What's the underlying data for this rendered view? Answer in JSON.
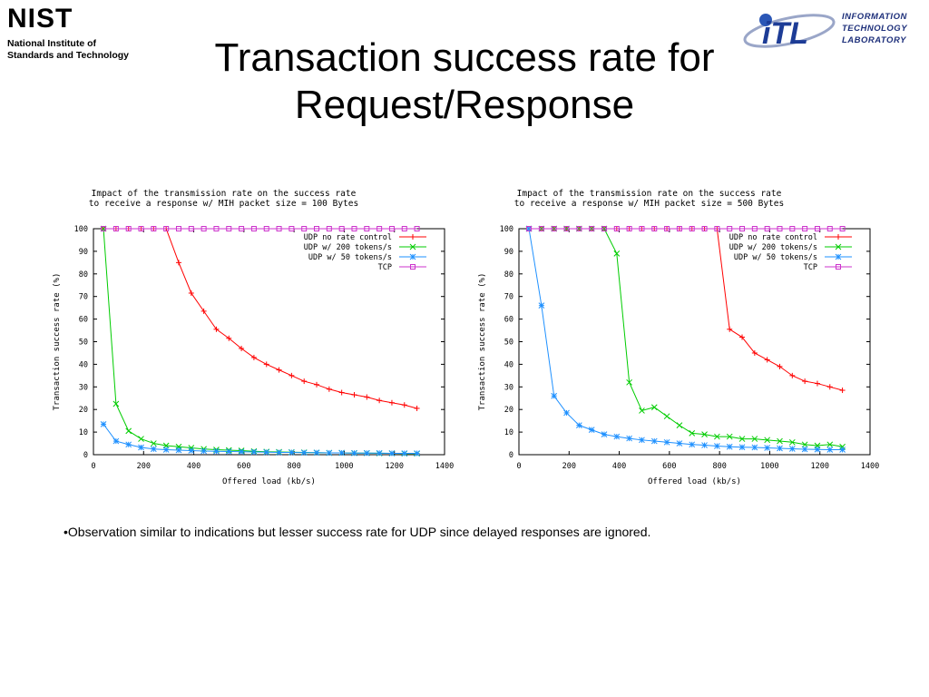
{
  "header": {
    "nist_logo": {
      "word": "NIST",
      "line1": "National Institute of",
      "line2": "Standards and Technology"
    },
    "itl_logo": {
      "mark": "iTL",
      "lines": [
        "INFORMATION",
        "TECHNOLOGY",
        "LABORATORY"
      ]
    },
    "title_line1": "Transaction success rate for",
    "title_line2": "Request/Response"
  },
  "bullet_text": "•Observation similar to indications but lesser success rate for UDP since delayed responses are ignored.",
  "chart_data": [
    {
      "type": "line",
      "title": "Impact of the transmission rate on the success rate",
      "subtitle": "to receive a response w/ MIH packet size = 100 Bytes",
      "xlabel": "Offered load (kb/s)",
      "ylabel": "Transaction success rate (%)",
      "xlim": [
        0,
        1400
      ],
      "ylim": [
        0,
        100
      ],
      "xticks": [
        0,
        200,
        400,
        600,
        800,
        1000,
        1200,
        1400
      ],
      "yticks": [
        0,
        10,
        20,
        30,
        40,
        50,
        60,
        70,
        80,
        90,
        100
      ],
      "grid": false,
      "legend_position": "top-right",
      "series": [
        {
          "name": "UDP no rate control",
          "color": "#ff0000",
          "marker": "plus",
          "x": [
            40,
            90,
            140,
            190,
            240,
            290,
            340,
            390,
            440,
            490,
            540,
            590,
            640,
            690,
            740,
            790,
            840,
            890,
            940,
            990,
            1040,
            1090,
            1140,
            1190,
            1240,
            1290
          ],
          "y": [
            100,
            100,
            100,
            100,
            100,
            100,
            85,
            71.5,
            63.5,
            55.5,
            51.5,
            47,
            43,
            40,
            37.5,
            35,
            32.5,
            31,
            29,
            27.5,
            26.5,
            25.5,
            24,
            23,
            22,
            20.5
          ]
        },
        {
          "name": "UDP w/ 200 tokens/s",
          "color": "#00cc00",
          "marker": "x",
          "x": [
            40,
            90,
            140,
            190,
            240,
            290,
            340,
            390,
            440,
            490,
            540,
            590,
            640,
            690,
            740,
            790,
            840,
            890,
            940,
            990,
            1040,
            1090,
            1140,
            1190,
            1240,
            1290
          ],
          "y": [
            100,
            22.5,
            10.5,
            7,
            5,
            4,
            3.5,
            3,
            2.5,
            2.2,
            2,
            1.8,
            1.5,
            1.3,
            1.2,
            1.1,
            1,
            0.9,
            0.8,
            0.8,
            0.7,
            0.7,
            0.6,
            0.6,
            0.5,
            0.5
          ]
        },
        {
          "name": "UDP w/ 50 tokens/s",
          "color": "#1e90ff",
          "marker": "star",
          "x": [
            40,
            90,
            140,
            190,
            240,
            290,
            340,
            390,
            440,
            490,
            540,
            590,
            640,
            690,
            740,
            790,
            840,
            890,
            940,
            990,
            1040,
            1090,
            1140,
            1190,
            1240,
            1290
          ],
          "y": [
            13.5,
            6,
            4.5,
            3.2,
            2.5,
            2.2,
            2,
            1.8,
            1.6,
            1.5,
            1.4,
            1.3,
            1.2,
            1.1,
            1,
            1,
            0.9,
            0.9,
            0.8,
            0.8,
            0.7,
            0.7,
            0.7,
            0.6,
            0.6,
            0.6
          ]
        },
        {
          "name": "TCP",
          "color": "#cc33cc",
          "marker": "square",
          "x": [
            40,
            90,
            140,
            190,
            240,
            290,
            340,
            390,
            440,
            490,
            540,
            590,
            640,
            690,
            740,
            790,
            840,
            890,
            940,
            990,
            1040,
            1090,
            1140,
            1190,
            1240,
            1290
          ],
          "y": [
            100,
            100,
            100,
            100,
            100,
            100,
            100,
            100,
            100,
            100,
            100,
            100,
            100,
            100,
            100,
            100,
            100,
            100,
            100,
            100,
            100,
            100,
            100,
            100,
            100,
            100
          ]
        }
      ]
    },
    {
      "type": "line",
      "title": "Impact of the transmission rate on the success rate",
      "subtitle": "to receive a response w/ MIH packet size = 500 Bytes",
      "xlabel": "Offered load (kb/s)",
      "ylabel": "Transaction success rate (%)",
      "xlim": [
        0,
        1400
      ],
      "ylim": [
        0,
        100
      ],
      "xticks": [
        0,
        200,
        400,
        600,
        800,
        1000,
        1200,
        1400
      ],
      "yticks": [
        0,
        10,
        20,
        30,
        40,
        50,
        60,
        70,
        80,
        90,
        100
      ],
      "grid": false,
      "legend_position": "top-right",
      "series": [
        {
          "name": "UDP no rate control",
          "color": "#ff0000",
          "marker": "plus",
          "x": [
            40,
            90,
            140,
            190,
            240,
            290,
            340,
            390,
            440,
            490,
            540,
            590,
            640,
            690,
            740,
            790,
            840,
            890,
            940,
            990,
            1040,
            1090,
            1140,
            1190,
            1240,
            1290
          ],
          "y": [
            100,
            100,
            100,
            100,
            100,
            100,
            100,
            100,
            100,
            100,
            100,
            100,
            100,
            100,
            100,
            100,
            55.5,
            52,
            45,
            42,
            39,
            35,
            32.5,
            31.5,
            30,
            28.5
          ]
        },
        {
          "name": "UDP w/ 200 tokens/s",
          "color": "#00cc00",
          "marker": "x",
          "x": [
            40,
            90,
            140,
            190,
            240,
            290,
            340,
            390,
            440,
            490,
            540,
            590,
            640,
            690,
            740,
            790,
            840,
            890,
            940,
            990,
            1040,
            1090,
            1140,
            1190,
            1240,
            1290
          ],
          "y": [
            100,
            100,
            100,
            100,
            100,
            100,
            100,
            89,
            32,
            19.5,
            21,
            17,
            13,
            9.5,
            9,
            8,
            8,
            7,
            7,
            6.5,
            6,
            5.5,
            4.5,
            4,
            4.5,
            3.5
          ]
        },
        {
          "name": "UDP w/ 50 tokens/s",
          "color": "#1e90ff",
          "marker": "star",
          "x": [
            40,
            90,
            140,
            190,
            240,
            290,
            340,
            390,
            440,
            490,
            540,
            590,
            640,
            690,
            740,
            790,
            840,
            890,
            940,
            990,
            1040,
            1090,
            1140,
            1190,
            1240,
            1290
          ],
          "y": [
            100,
            66,
            26,
            18.5,
            13,
            11,
            9,
            8,
            7.2,
            6.5,
            6,
            5.5,
            5,
            4.5,
            4.2,
            3.8,
            3.5,
            3.3,
            3.2,
            3,
            2.8,
            2.6,
            2.4,
            2.3,
            2.2,
            2.2
          ]
        },
        {
          "name": "TCP",
          "color": "#cc33cc",
          "marker": "square",
          "x": [
            40,
            90,
            140,
            190,
            240,
            290,
            340,
            390,
            440,
            490,
            540,
            590,
            640,
            690,
            740,
            790,
            840,
            890,
            940,
            990,
            1040,
            1090,
            1140,
            1190,
            1240,
            1290
          ],
          "y": [
            100,
            100,
            100,
            100,
            100,
            100,
            100,
            100,
            100,
            100,
            100,
            100,
            100,
            100,
            100,
            100,
            100,
            100,
            100,
            100,
            100,
            100,
            100,
            100,
            100,
            100
          ]
        }
      ]
    }
  ]
}
